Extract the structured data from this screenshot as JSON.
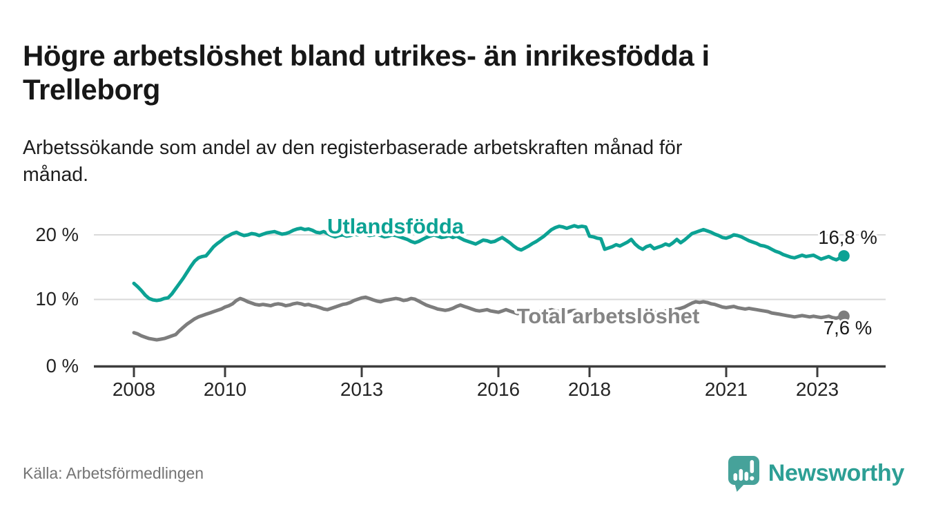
{
  "header": {
    "title_lines": [
      "Högre arbetslöshet bland utrikes- än inrikesfödda i",
      "Trelleborg"
    ],
    "subtitle_lines": [
      "Arbetssökande som andel av den registerbaserade arbetskraften månad för",
      "månad."
    ]
  },
  "chart_data": {
    "type": "line",
    "title": "Högre arbetslöshet bland utrikes- än inrikesfödda i Trelleborg",
    "subtitle": "Arbetssökande som andel av den registerbaserade arbetskraften månad för månad.",
    "x_unit": "month",
    "x_start": "2008-01",
    "x_end": "2023-08",
    "ylim": [
      0,
      22
    ],
    "grid": "horizontal",
    "y_ticks": [
      20,
      10,
      0
    ],
    "y_tick_labels": [
      "20 %",
      "10 %",
      "0 %"
    ],
    "x_tick_years": [
      2008,
      2010,
      2013,
      2016,
      2018,
      2021,
      2023
    ],
    "x_tick_labels": [
      "2008",
      "2010",
      "2013",
      "2016",
      "2018",
      "2021",
      "2023"
    ],
    "series": [
      {
        "name": "Utlandsfödda",
        "color": "#0ca294",
        "label_color": "#0ca294",
        "end_label": "16,8 %",
        "end_value": 16.8,
        "values": [
          12.6,
          12.1,
          11.5,
          10.8,
          10.3,
          10.1,
          10.0,
          10.1,
          10.3,
          10.4,
          11.0,
          11.8,
          12.6,
          13.4,
          14.3,
          15.2,
          16.0,
          16.5,
          16.7,
          16.8,
          17.5,
          18.2,
          18.7,
          19.1,
          19.6,
          19.9,
          20.2,
          20.4,
          20.1,
          19.9,
          20.0,
          20.2,
          20.1,
          19.9,
          20.1,
          20.3,
          20.4,
          20.5,
          20.3,
          20.1,
          20.2,
          20.4,
          20.7,
          20.9,
          21.0,
          20.8,
          20.9,
          20.7,
          20.4,
          20.3,
          20.5,
          20.2,
          19.9,
          19.7,
          19.9,
          20.0,
          19.8,
          19.9,
          20.1,
          20.0,
          20.2,
          20.1,
          19.9,
          20.0,
          20.1,
          19.9,
          19.7,
          19.8,
          20.0,
          19.9,
          19.7,
          19.5,
          19.3,
          19.0,
          18.8,
          19.0,
          19.3,
          19.6,
          19.8,
          20.0,
          19.8,
          19.6,
          19.7,
          19.9,
          19.6,
          19.8,
          19.5,
          19.2,
          19.0,
          18.8,
          18.6,
          18.9,
          19.2,
          19.1,
          18.9,
          19.0,
          19.3,
          19.6,
          19.2,
          18.8,
          18.3,
          17.9,
          17.7,
          18.0,
          18.3,
          18.7,
          19.0,
          19.4,
          19.8,
          20.3,
          20.8,
          21.1,
          21.3,
          21.2,
          21.0,
          21.2,
          21.4,
          21.2,
          21.3,
          21.2,
          19.8,
          19.7,
          19.5,
          19.4,
          17.8,
          18.0,
          18.2,
          18.5,
          18.3,
          18.6,
          18.9,
          19.3,
          18.6,
          18.1,
          17.8,
          18.2,
          18.4,
          17.9,
          18.1,
          18.3,
          18.6,
          18.4,
          18.8,
          19.3,
          18.8,
          19.2,
          19.7,
          20.2,
          20.4,
          20.6,
          20.8,
          20.6,
          20.4,
          20.1,
          19.9,
          19.6,
          19.5,
          19.7,
          20.0,
          19.9,
          19.7,
          19.4,
          19.1,
          18.9,
          18.7,
          18.4,
          18.3,
          18.1,
          17.8,
          17.5,
          17.3,
          17.0,
          16.8,
          16.6,
          16.5,
          16.7,
          16.9,
          16.7,
          16.8,
          16.9,
          16.6,
          16.3,
          16.5,
          16.7,
          16.4,
          16.2,
          16.5,
          16.8
        ]
      },
      {
        "name": "Total arbetslöshet",
        "color": "#7d7d7d",
        "label_color": "#858585",
        "end_label": "7,6 %",
        "end_value": 7.6,
        "values": [
          5.1,
          4.9,
          4.6,
          4.4,
          4.2,
          4.1,
          4.0,
          4.1,
          4.2,
          4.4,
          4.6,
          4.8,
          5.4,
          5.9,
          6.4,
          6.8,
          7.2,
          7.5,
          7.7,
          7.9,
          8.1,
          8.3,
          8.5,
          8.7,
          9.0,
          9.2,
          9.5,
          10.0,
          10.3,
          10.1,
          9.8,
          9.6,
          9.4,
          9.3,
          9.4,
          9.3,
          9.2,
          9.4,
          9.5,
          9.4,
          9.2,
          9.3,
          9.5,
          9.6,
          9.5,
          9.3,
          9.4,
          9.2,
          9.1,
          8.9,
          8.7,
          8.6,
          8.8,
          9.0,
          9.2,
          9.4,
          9.5,
          9.7,
          10.0,
          10.2,
          10.4,
          10.5,
          10.3,
          10.1,
          9.9,
          9.8,
          10.0,
          10.1,
          10.2,
          10.3,
          10.2,
          10.0,
          10.1,
          10.3,
          10.2,
          9.9,
          9.6,
          9.3,
          9.1,
          8.9,
          8.7,
          8.6,
          8.5,
          8.6,
          8.8,
          9.1,
          9.3,
          9.1,
          8.9,
          8.7,
          8.5,
          8.4,
          8.5,
          8.6,
          8.4,
          8.3,
          8.2,
          8.4,
          8.6,
          8.4,
          8.2,
          8.0,
          8.1,
          8.3,
          8.4,
          8.2,
          8.1,
          8.3,
          8.3,
          8.5,
          8.6,
          8.4,
          8.3,
          8.1,
          8.2,
          8.4,
          8.5,
          8.3,
          8.2,
          8.1,
          8.0,
          7.9,
          7.8,
          7.9,
          8.1,
          7.9,
          7.8,
          8.0,
          8.1,
          8.0,
          8.1,
          8.3,
          8.2,
          8.1,
          8.0,
          8.1,
          8.3,
          8.2,
          8.1,
          8.3,
          8.4,
          8.3,
          8.5,
          8.7,
          8.8,
          9.0,
          9.3,
          9.6,
          9.8,
          9.7,
          9.8,
          9.7,
          9.5,
          9.4,
          9.2,
          9.0,
          8.9,
          9.0,
          9.1,
          8.9,
          8.8,
          8.7,
          8.8,
          8.7,
          8.6,
          8.5,
          8.4,
          8.3,
          8.1,
          8.0,
          7.9,
          7.8,
          7.7,
          7.6,
          7.5,
          7.6,
          7.7,
          7.6,
          7.5,
          7.6,
          7.5,
          7.4,
          7.5,
          7.6,
          7.4,
          7.3,
          7.5,
          7.6
        ]
      }
    ]
  },
  "footer": {
    "source": "Källa: Arbetsförmedlingen",
    "logo_text": "Newsworthy"
  },
  "colors": {
    "accent_teal": "#0ca294",
    "line_gray": "#7d7d7d",
    "logo_bubble": "#46a29a",
    "logo_text": "#2d9f95",
    "grid": "#d9d9d9",
    "axis": "#3c3c3c"
  }
}
